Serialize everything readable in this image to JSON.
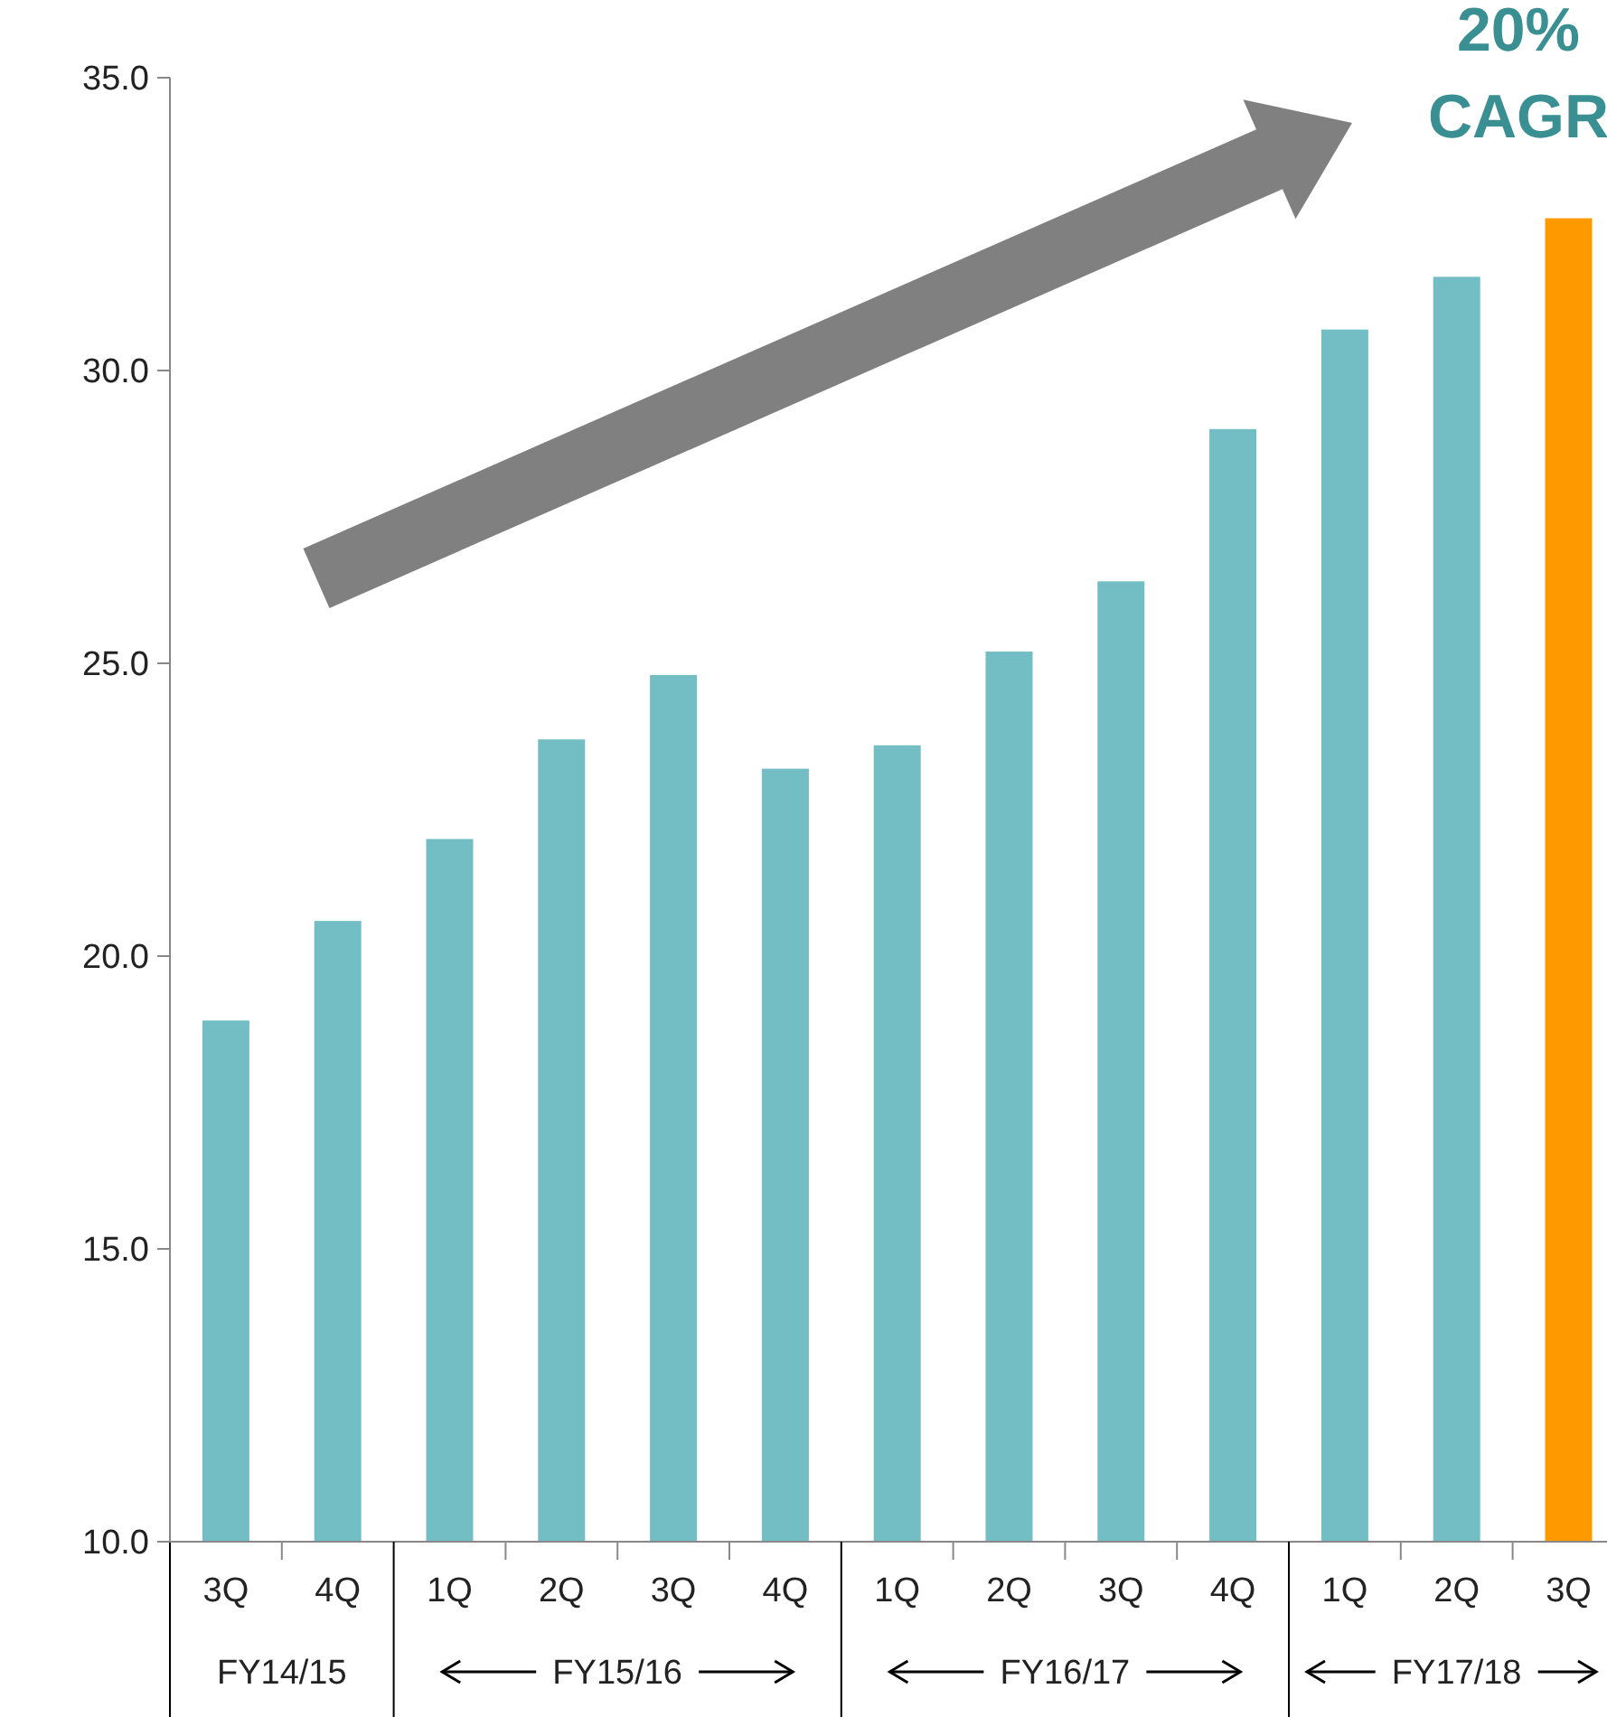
{
  "chart_data": {
    "type": "bar",
    "categories": [
      "3Q",
      "4Q",
      "1Q",
      "2Q",
      "3Q",
      "4Q",
      "1Q",
      "2Q",
      "3Q",
      "4Q",
      "1Q",
      "2Q",
      "3Q"
    ],
    "values": [
      18.9,
      20.6,
      22.0,
      23.7,
      24.8,
      23.2,
      23.6,
      25.2,
      26.4,
      29.0,
      30.7,
      31.6,
      32.6
    ],
    "colors": [
      "#72bec4",
      "#72bec4",
      "#72bec4",
      "#72bec4",
      "#72bec4",
      "#72bec4",
      "#72bec4",
      "#72bec4",
      "#72bec4",
      "#72bec4",
      "#72bec4",
      "#72bec4",
      "#ff9900"
    ],
    "ylim": [
      10,
      35
    ],
    "yticks": [
      {
        "value": 10,
        "label": "10.0"
      },
      {
        "value": 15,
        "label": "15.0"
      },
      {
        "value": 20,
        "label": "20.0"
      },
      {
        "value": 25,
        "label": "25.0"
      },
      {
        "value": 30,
        "label": "30.0"
      },
      {
        "value": 35,
        "label": "35.0"
      }
    ],
    "grid": false,
    "annotations": [
      "20% CAGR",
      "FY14/15",
      "FY15/16",
      "FY16/17",
      "FY17/18"
    ]
  }
}
